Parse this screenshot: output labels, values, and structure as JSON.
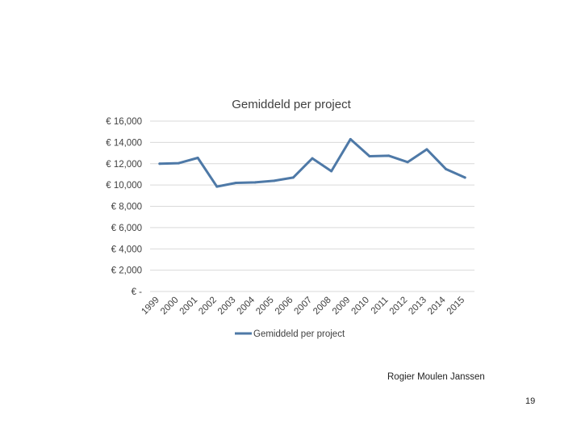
{
  "chart_data": {
    "type": "line",
    "title": "Gemiddeld per project",
    "categories": [
      "1999",
      "2000",
      "2001",
      "2002",
      "2003",
      "2004",
      "2005",
      "2006",
      "2007",
      "2008",
      "2009",
      "2010",
      "2011",
      "2012",
      "2013",
      "2014",
      "2015"
    ],
    "series": [
      {
        "name": "Gemiddeld per project",
        "color": "#4e79a7",
        "values": [
          12000,
          12050,
          12550,
          9850,
          10200,
          10250,
          10400,
          10700,
          12500,
          11300,
          14300,
          12700,
          12750,
          12150,
          13350,
          11500,
          10700
        ]
      }
    ],
    "y_tick_labels": [
      "€ 16,000",
      "€ 14,000",
      "€ 12,000",
      "€ 10,000",
      "€ 8,000",
      "€ 6,000",
      "€ 4,000",
      "€ 2,000",
      "€ -"
    ],
    "y_tick_values": [
      16000,
      14000,
      12000,
      10000,
      8000,
      6000,
      4000,
      2000,
      0
    ],
    "ylim": [
      0,
      16000
    ],
    "xlabel": "",
    "ylabel": "",
    "grid": true,
    "legend_position": "bottom"
  },
  "footer": {
    "author": "Rogier Moulen Janssen",
    "page_number": "19"
  }
}
